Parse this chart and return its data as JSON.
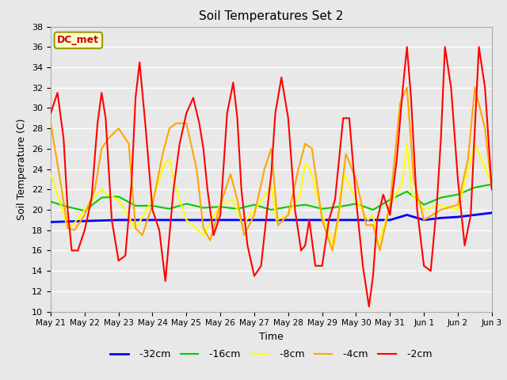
{
  "title": "Soil Temperatures Set 2",
  "xlabel": "Time",
  "ylabel": "Soil Temperature (C)",
  "xlim": [
    0,
    13
  ],
  "ylim": [
    10,
    38
  ],
  "yticks": [
    10,
    12,
    14,
    16,
    18,
    20,
    22,
    24,
    26,
    28,
    30,
    32,
    34,
    36,
    38
  ],
  "xtick_labels": [
    "May 21",
    "May 22",
    "May 23",
    "May 24",
    "May 25",
    "May 26",
    "May 27",
    "May 28",
    "May 29",
    "May 30",
    "May 31",
    "Jun 1",
    "Jun 2",
    "Jun 3"
  ],
  "background_color": "#e8e8e8",
  "plot_bg_color": "#e8e8e8",
  "grid_color": "#ffffff",
  "annotation_text": "DC_met",
  "annotation_bg": "#ffffcc",
  "annotation_border": "#999900",
  "series": {
    "depth_32": {
      "label": "-32cm",
      "color": "blue",
      "linewidth": 2.0,
      "x": [
        0,
        1,
        2,
        3,
        4,
        5,
        6,
        7,
        8,
        9,
        10,
        10.5,
        11,
        11.5,
        12,
        12.5,
        13
      ],
      "y": [
        18.8,
        18.9,
        19.0,
        19.0,
        19.0,
        19.0,
        19.0,
        19.0,
        19.0,
        19.0,
        19.0,
        19.5,
        19.0,
        19.2,
        19.3,
        19.5,
        19.7
      ]
    },
    "depth_16": {
      "label": "-16cm",
      "color": "#00cc00",
      "linewidth": 1.5,
      "x": [
        0,
        0.5,
        1,
        1.5,
        2,
        2.5,
        3,
        3.5,
        4,
        4.5,
        5,
        5.5,
        6,
        6.5,
        7,
        7.5,
        8,
        8.5,
        9,
        9.5,
        10,
        10.5,
        11,
        11.5,
        12,
        12.5,
        13
      ],
      "y": [
        20.8,
        20.3,
        19.9,
        21.2,
        21.3,
        20.4,
        20.4,
        20.1,
        20.6,
        20.2,
        20.3,
        20.1,
        20.5,
        20.0,
        20.3,
        20.5,
        20.1,
        20.3,
        20.6,
        20.0,
        21.0,
        21.8,
        20.5,
        21.2,
        21.5,
        22.2,
        22.5
      ]
    },
    "depth_8": {
      "label": "-8cm",
      "color": "#ffff00",
      "linewidth": 1.5,
      "x": [
        0,
        0.35,
        0.5,
        0.65,
        1,
        1.35,
        1.5,
        1.65,
        2,
        2.35,
        2.5,
        2.65,
        3,
        3.35,
        3.5,
        3.65,
        4,
        4.35,
        4.5,
        4.65,
        5,
        5.35,
        5.5,
        5.65,
        6,
        6.35,
        6.5,
        6.65,
        7,
        7.35,
        7.5,
        7.65,
        8,
        8.35,
        8.5,
        8.65,
        9,
        9.35,
        9.5,
        9.65,
        10,
        10.35,
        10.5,
        10.65,
        11,
        11.5,
        12,
        12.5,
        13
      ],
      "y": [
        23.5,
        20.0,
        18.2,
        18.5,
        20.0,
        21.5,
        22.0,
        21.5,
        21.0,
        19.0,
        18.2,
        19.0,
        21.0,
        24.5,
        25.0,
        22.5,
        19.0,
        18.0,
        17.5,
        18.5,
        20.5,
        21.0,
        20.0,
        18.5,
        20.0,
        21.5,
        22.5,
        19.0,
        19.5,
        21.5,
        24.5,
        24.0,
        19.5,
        16.5,
        19.5,
        23.5,
        21.0,
        19.0,
        19.5,
        16.5,
        20.5,
        22.5,
        26.5,
        21.5,
        20.0,
        20.5,
        20.0,
        26.5,
        22.5
      ]
    },
    "depth_4": {
      "label": "-4cm",
      "color": "orange",
      "linewidth": 1.5,
      "x": [
        0,
        0.3,
        0.5,
        0.7,
        1,
        1.3,
        1.5,
        1.7,
        2,
        2.3,
        2.5,
        2.7,
        3,
        3.3,
        3.5,
        3.7,
        4,
        4.3,
        4.5,
        4.7,
        5,
        5.3,
        5.5,
        5.7,
        6,
        6.3,
        6.5,
        6.7,
        7,
        7.3,
        7.5,
        7.7,
        8,
        8.3,
        8.5,
        8.7,
        9,
        9.3,
        9.5,
        9.7,
        10,
        10.3,
        10.5,
        10.7,
        11,
        11.5,
        12,
        12.3,
        12.5,
        12.8,
        13
      ],
      "y": [
        28.5,
        22.5,
        18.2,
        18.0,
        19.5,
        22.0,
        26.0,
        27.0,
        28.0,
        26.5,
        18.2,
        17.5,
        20.5,
        25.5,
        28.0,
        28.5,
        28.5,
        24.0,
        18.2,
        17.0,
        20.5,
        23.5,
        21.0,
        17.5,
        19.5,
        24.0,
        26.0,
        18.5,
        19.5,
        24.0,
        26.5,
        26.0,
        19.0,
        16.0,
        20.0,
        25.5,
        23.0,
        18.5,
        18.5,
        16.0,
        20.5,
        30.5,
        32.0,
        23.0,
        19.0,
        20.0,
        20.5,
        25.0,
        32.0,
        28.0,
        22.0
      ]
    },
    "depth_2": {
      "label": "-2cm",
      "color": "red",
      "linewidth": 1.5,
      "x": [
        0,
        0.2,
        0.38,
        0.5,
        0.62,
        0.8,
        1.0,
        1.2,
        1.38,
        1.5,
        1.62,
        1.8,
        2.0,
        2.2,
        2.38,
        2.5,
        2.62,
        2.8,
        3.0,
        3.2,
        3.38,
        3.5,
        3.62,
        3.8,
        4.0,
        4.2,
        4.38,
        4.5,
        4.62,
        4.8,
        5.0,
        5.2,
        5.38,
        5.5,
        5.62,
        5.8,
        6.0,
        6.2,
        6.38,
        6.5,
        6.62,
        6.8,
        7.0,
        7.2,
        7.38,
        7.5,
        7.62,
        7.8,
        8.0,
        8.2,
        8.38,
        8.5,
        8.62,
        8.8,
        9.0,
        9.2,
        9.38,
        9.5,
        9.62,
        9.8,
        10.0,
        10.2,
        10.38,
        10.5,
        10.62,
        10.8,
        11.0,
        11.2,
        11.38,
        11.5,
        11.62,
        11.8,
        12.0,
        12.2,
        12.38,
        12.5,
        12.62,
        12.8,
        13.0
      ],
      "y": [
        29.5,
        31.5,
        27.0,
        20.0,
        16.0,
        16.0,
        18.0,
        21.0,
        28.5,
        31.5,
        29.0,
        19.0,
        15.0,
        15.5,
        22.5,
        31.0,
        34.5,
        28.0,
        20.0,
        18.0,
        13.0,
        17.5,
        22.0,
        26.5,
        29.5,
        31.0,
        28.5,
        26.0,
        22.0,
        17.5,
        19.5,
        29.5,
        32.5,
        29.0,
        22.0,
        16.5,
        13.5,
        14.5,
        20.0,
        23.5,
        29.5,
        33.0,
        29.0,
        20.0,
        16.0,
        16.5,
        19.0,
        14.5,
        14.5,
        19.0,
        21.0,
        25.0,
        29.0,
        29.0,
        21.0,
        14.5,
        10.5,
        13.5,
        19.0,
        21.5,
        19.5,
        25.0,
        32.0,
        36.0,
        31.0,
        20.0,
        14.5,
        14.0,
        20.5,
        27.0,
        36.0,
        32.0,
        23.0,
        16.5,
        19.5,
        28.0,
        36.0,
        32.0,
        22.0
      ]
    }
  }
}
